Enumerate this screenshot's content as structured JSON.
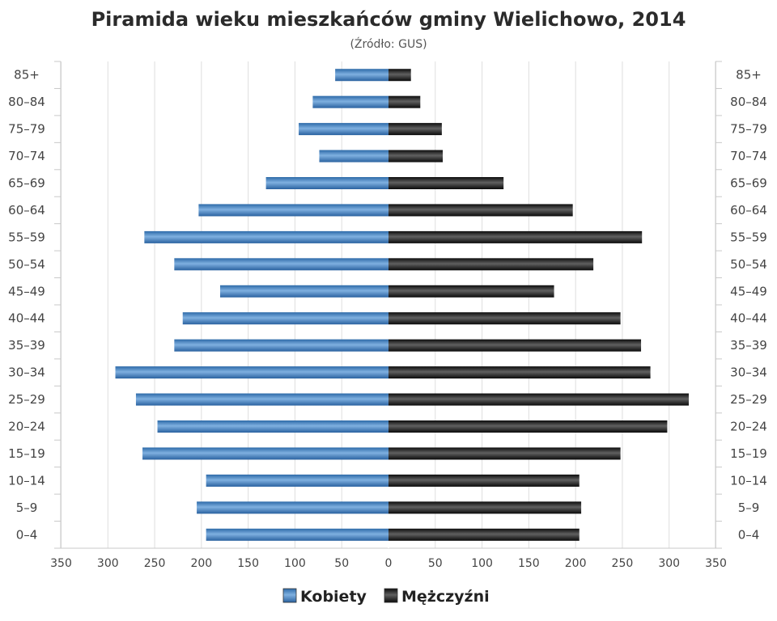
{
  "chart_data": {
    "type": "bar",
    "title": "Piramida wieku mieszkańców gminy Wielichowo, 2014",
    "subtitle": "(Źródło: GUS)",
    "categories": [
      "0–4",
      "5–9",
      "10–14",
      "15–19",
      "20–24",
      "25–29",
      "30–34",
      "35–39",
      "40–44",
      "45–49",
      "50–54",
      "55–59",
      "60–64",
      "65–69",
      "70–74",
      "75–79",
      "80–84",
      "85+"
    ],
    "series": [
      {
        "name": "Kobiety",
        "color": "#3a78b5",
        "values": [
          195,
          205,
          195,
          263,
          247,
          270,
          292,
          229,
          220,
          180,
          229,
          261,
          203,
          131,
          74,
          96,
          81,
          57
        ]
      },
      {
        "name": "Mężczyźni",
        "color": "#1c1c1c",
        "values": [
          204,
          206,
          204,
          248,
          298,
          321,
          280,
          270,
          248,
          177,
          219,
          271,
          197,
          123,
          58,
          57,
          34,
          24
        ]
      }
    ],
    "x_ticks": [
      "350",
      "300",
      "250",
      "200",
      "150",
      "100",
      "50",
      "0",
      "50",
      "100",
      "150",
      "200",
      "250",
      "300",
      "350"
    ],
    "xlim": [
      -350,
      350
    ],
    "grid": true,
    "legend": "bottom-center"
  }
}
